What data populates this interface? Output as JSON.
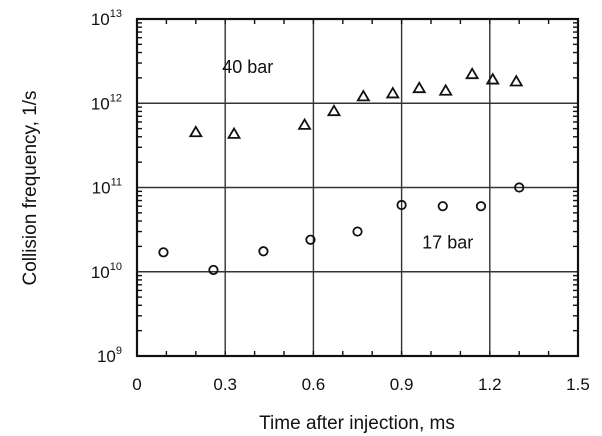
{
  "chart_data": {
    "type": "scatter",
    "title": "",
    "xlabel": "Time after injection, ms",
    "ylabel": "Collision frequency,  1/s",
    "xlim": [
      0,
      1.5
    ],
    "ylim": [
      1000000000.0,
      10000000000000.0
    ],
    "yscale": "log",
    "grid": true,
    "x_ticks": [
      {
        "value": 0,
        "label": "0"
      },
      {
        "value": 0.3,
        "label": "0.3"
      },
      {
        "value": 0.6,
        "label": "0.6"
      },
      {
        "value": 0.9,
        "label": "0.9"
      },
      {
        "value": 1.2,
        "label": "1.2"
      },
      {
        "value": 1.5,
        "label": "1.5"
      }
    ],
    "y_ticks": [
      {
        "value": 1000000000.0,
        "base": "10",
        "exp": "9"
      },
      {
        "value": 10000000000.0,
        "base": "10",
        "exp": "10"
      },
      {
        "value": 100000000000.0,
        "base": "10",
        "exp": "11"
      },
      {
        "value": 1000000000000.0,
        "base": "10",
        "exp": "12"
      },
      {
        "value": 10000000000000.0,
        "base": "10",
        "exp": "13"
      }
    ],
    "series": [
      {
        "name": "40 bar",
        "marker": "triangle",
        "x": [
          0.2,
          0.33,
          0.57,
          0.67,
          0.77,
          0.87,
          0.96,
          1.05,
          1.14,
          1.21,
          1.29
        ],
        "y": [
          450000000000.0,
          430000000000.0,
          550000000000.0,
          800000000000.0,
          1200000000000.0,
          1300000000000.0,
          1500000000000.0,
          1400000000000.0,
          2200000000000.0,
          1900000000000.0,
          1800000000000.0
        ]
      },
      {
        "name": "17 bar",
        "marker": "circle",
        "x": [
          0.09,
          0.26,
          0.43,
          0.59,
          0.75,
          0.9,
          1.04,
          1.17,
          1.3
        ],
        "y": [
          17000000000.0,
          10500000000.0,
          17500000000.0,
          24000000000.0,
          30000000000.0,
          62000000000.0,
          60000000000.0,
          60000000000.0,
          100000000000.0
        ]
      }
    ],
    "annotations": [
      {
        "text": "40 bar",
        "x": 0.29,
        "y": 2300000000000.0
      },
      {
        "text": "17 bar",
        "x": 0.97,
        "y": 19000000000.0
      }
    ],
    "colors": {
      "ink": "#111111",
      "background": "#ffffff"
    }
  }
}
